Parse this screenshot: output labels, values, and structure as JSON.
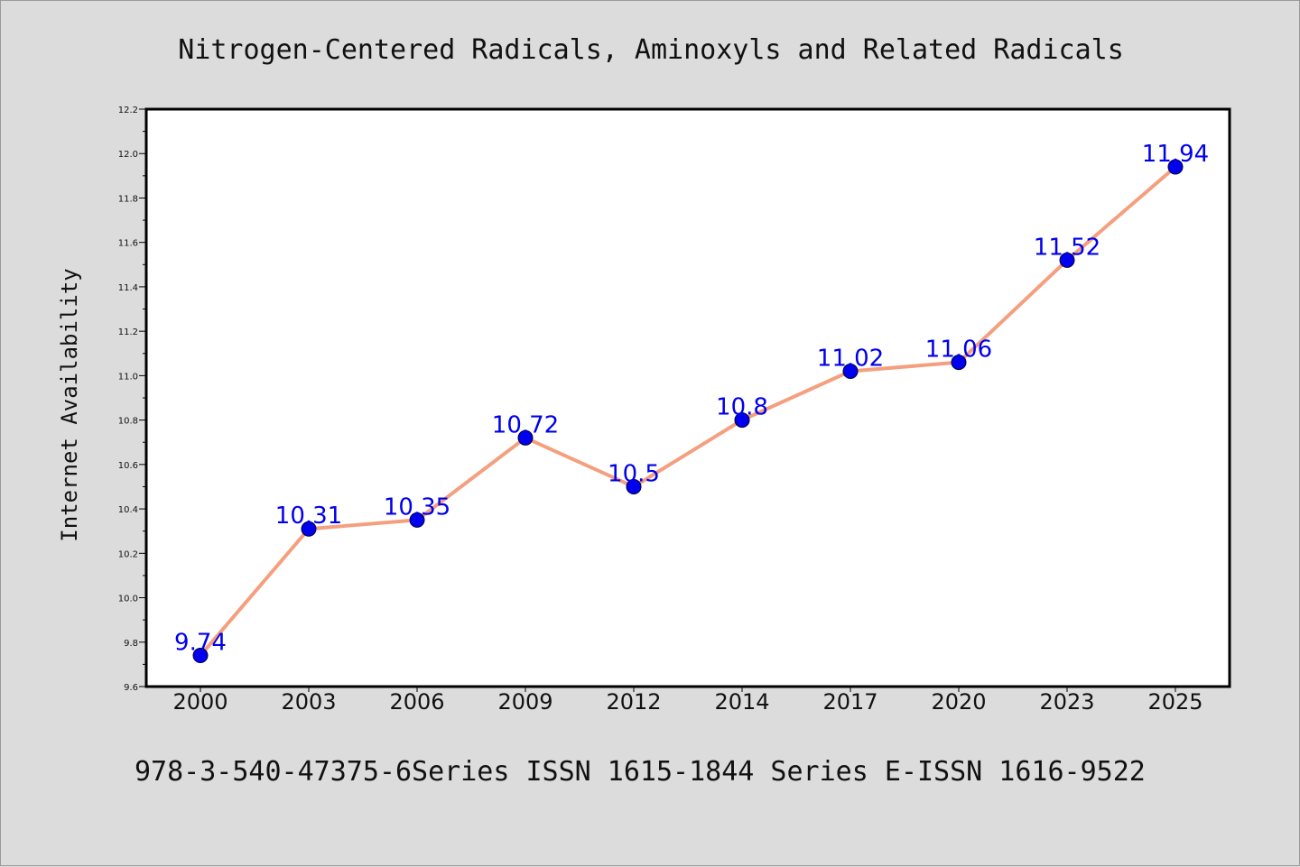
{
  "chart_data": {
    "type": "line",
    "title": "Nitrogen-Centered Radicals, Aminoxyls and Related Radicals",
    "xlabel": "",
    "ylabel": "Internet Availability",
    "categories": [
      "2000",
      "2003",
      "2006",
      "2009",
      "2012",
      "2014",
      "2017",
      "2020",
      "2023",
      "2025"
    ],
    "series": [
      {
        "values": [
          9.74,
          10.31,
          10.35,
          10.72,
          10.5,
          10.8,
          11.02,
          11.06,
          11.52,
          11.94
        ],
        "labels": [
          "9.74",
          "10.31",
          "10.35",
          "10.72",
          "10.5",
          "10.8",
          "11.02",
          "11.06",
          "11.52",
          "11.94"
        ],
        "line_color": "#f4a07f",
        "marker_color": "#0000ee",
        "label_color": "#0000ee"
      }
    ],
    "ylim": [
      9.6,
      12.2
    ],
    "yticks": [
      "9.6",
      "9.8",
      "10.0",
      "10.2",
      "10.4",
      "10.6",
      "10.8",
      "11.0",
      "11.2",
      "11.4",
      "11.6",
      "11.8",
      "12.0",
      "12.2"
    ],
    "grid": false,
    "legend": "none"
  },
  "footer": {
    "text": "978-3-540-47375-6Series ISSN 1615-1844 Series E-ISSN 1616-9522"
  },
  "colors": {
    "background": "#dcdcdc",
    "plot_background": "#ffffff"
  }
}
